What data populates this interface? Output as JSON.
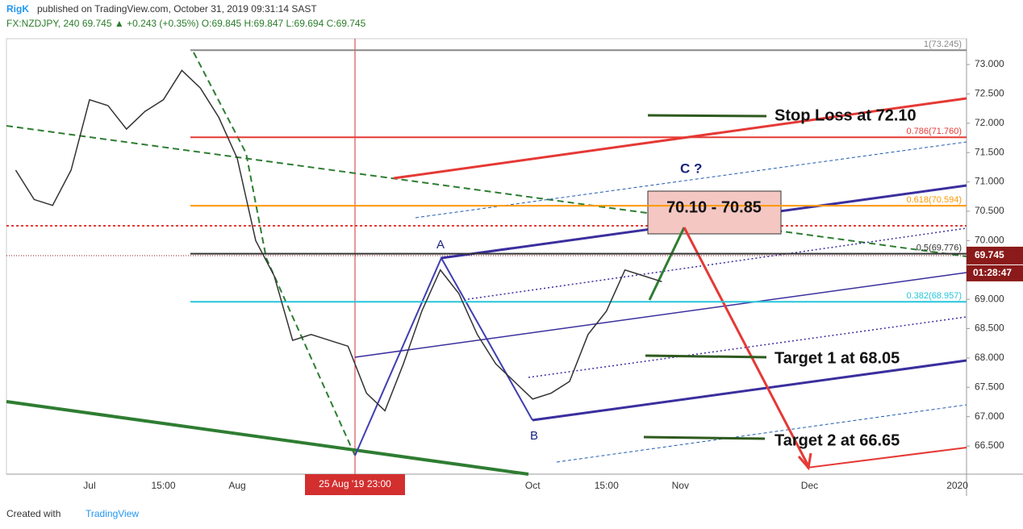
{
  "header": {
    "author": "RigK",
    "published": "published on TradingView.com, October 31, 2019 09:31:14 SAST",
    "symbol": "FX:NZDJPY, 240 69.745 ▲ +0.243 (+0.35%) O:69.845 H:69.847 L:69.694 C:69.745"
  },
  "chart_data": {
    "type": "line",
    "categories": [
      null,
      null,
      null,
      null,
      "Jul",
      null,
      null,
      null,
      "15:00",
      null,
      null,
      null,
      "Aug",
      null,
      null,
      null,
      null,
      null,
      null,
      null,
      null,
      null,
      null,
      null,
      null,
      null,
      null,
      null,
      "Oct",
      null,
      null,
      null,
      "15:00",
      null,
      null,
      null,
      "Nov",
      null,
      null,
      null,
      null,
      null,
      null,
      "Dec",
      null,
      null,
      null,
      null,
      null,
      null,
      null,
      "2020"
    ],
    "series": [
      {
        "name": "NZDJPY",
        "color": "#333333",
        "values": [
          71.2,
          70.7,
          70.6,
          71.2,
          72.4,
          72.3,
          71.9,
          72.2,
          72.4,
          72.9,
          72.6,
          72.1,
          71.4,
          70.0,
          69.4,
          68.3,
          68.4,
          68.3,
          68.2,
          67.4,
          67.1,
          67.9,
          68.8,
          69.5,
          69.1,
          68.4,
          67.9,
          67.6,
          67.3,
          67.4,
          67.6,
          68.4,
          68.8,
          69.5,
          69.4,
          69.3,
          null,
          null,
          null,
          null,
          null,
          null,
          null,
          null,
          null,
          null,
          null,
          null,
          null,
          null,
          null,
          null
        ]
      }
    ],
    "ylim": [
      66.02,
      73.44
    ],
    "yticks": [
      {
        "value": 66.5,
        "label": "66.500"
      },
      {
        "value": 67,
        "label": "67.000"
      },
      {
        "value": 67.5,
        "label": "67.500"
      },
      {
        "value": 68,
        "label": "68.000"
      },
      {
        "value": 68.5,
        "label": "68.500"
      },
      {
        "value": 69,
        "label": "69.000"
      },
      {
        "value": 69.5,
        "label": "69.500"
      },
      {
        "value": 70,
        "label": "70.000"
      },
      {
        "value": 70.5,
        "label": "70.500"
      },
      {
        "value": 71,
        "label": "71.000"
      },
      {
        "value": 71.5,
        "label": "71.500"
      },
      {
        "value": 72,
        "label": "72.000"
      },
      {
        "value": 72.5,
        "label": "72.500"
      },
      {
        "value": 73,
        "label": "73.000"
      }
    ],
    "fib_levels": [
      {
        "label": "1(73.245)",
        "value": 73.245,
        "color": "#888888"
      },
      {
        "label": "0.786(71.760)",
        "value": 71.76,
        "color": "#e53935"
      },
      {
        "label": "0.618(70.594)",
        "value": 70.594,
        "color": "#ff9800"
      },
      {
        "label": "0.5(69.776)",
        "value": 69.776,
        "color": "#333333"
      },
      {
        "label": "0.382(68.957)",
        "value": 68.957,
        "color": "#26c6da"
      }
    ],
    "annotations": {
      "stop": "Stop Loss at 72.10",
      "zone": "70.10 - 70.85",
      "c": "C ?",
      "a": "A",
      "b": "B",
      "target1": "Target 1 at 68.05",
      "target2": "Target 2 at 66.65"
    },
    "last_price": {
      "value": 69.745,
      "label": "69.745"
    },
    "countdown": "01:28:47",
    "crosshair_label": "25 Aug '19   23:00"
  },
  "footer": {
    "created": "Created with",
    "brand": "TradingView"
  }
}
